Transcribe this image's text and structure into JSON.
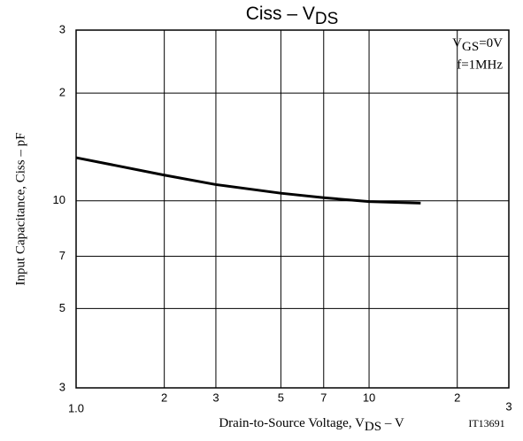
{
  "chart_data": {
    "type": "line",
    "title": {
      "main": "Ciss  –  V",
      "sub": "DS"
    },
    "x_label": {
      "main": "Drain-to-Source Voltage, V",
      "sub": "DS",
      "tail": "  –  V"
    },
    "y_label": "Input Capacitance, Ciss  –  pF",
    "annotation": {
      "v": "V",
      "sub": "GS",
      "rest": "=0V",
      "freq": "f=1MHz"
    },
    "figure_code": "IT13691",
    "x": [
      1,
      2,
      3,
      5,
      7,
      10,
      15
    ],
    "series": [
      {
        "name": "Ciss",
        "color": "#000000",
        "values": [
          13.2,
          11.8,
          11.1,
          10.5,
          10.2,
          9.95,
          9.85
        ]
      }
    ],
    "xlim": [
      1,
      30
    ],
    "ylim": [
      3,
      30
    ],
    "log_x": true,
    "log_y": true,
    "grid": true,
    "xticks": [
      {
        "value": 1,
        "label": "1.0"
      },
      2,
      3,
      5,
      7,
      10,
      {
        "value": 20,
        "label": "2"
      },
      {
        "value": 30,
        "label": "3"
      }
    ],
    "yticks": [
      3,
      5,
      7,
      10,
      {
        "value": 20,
        "label": "2"
      },
      {
        "value": 30,
        "label": "3"
      }
    ]
  }
}
